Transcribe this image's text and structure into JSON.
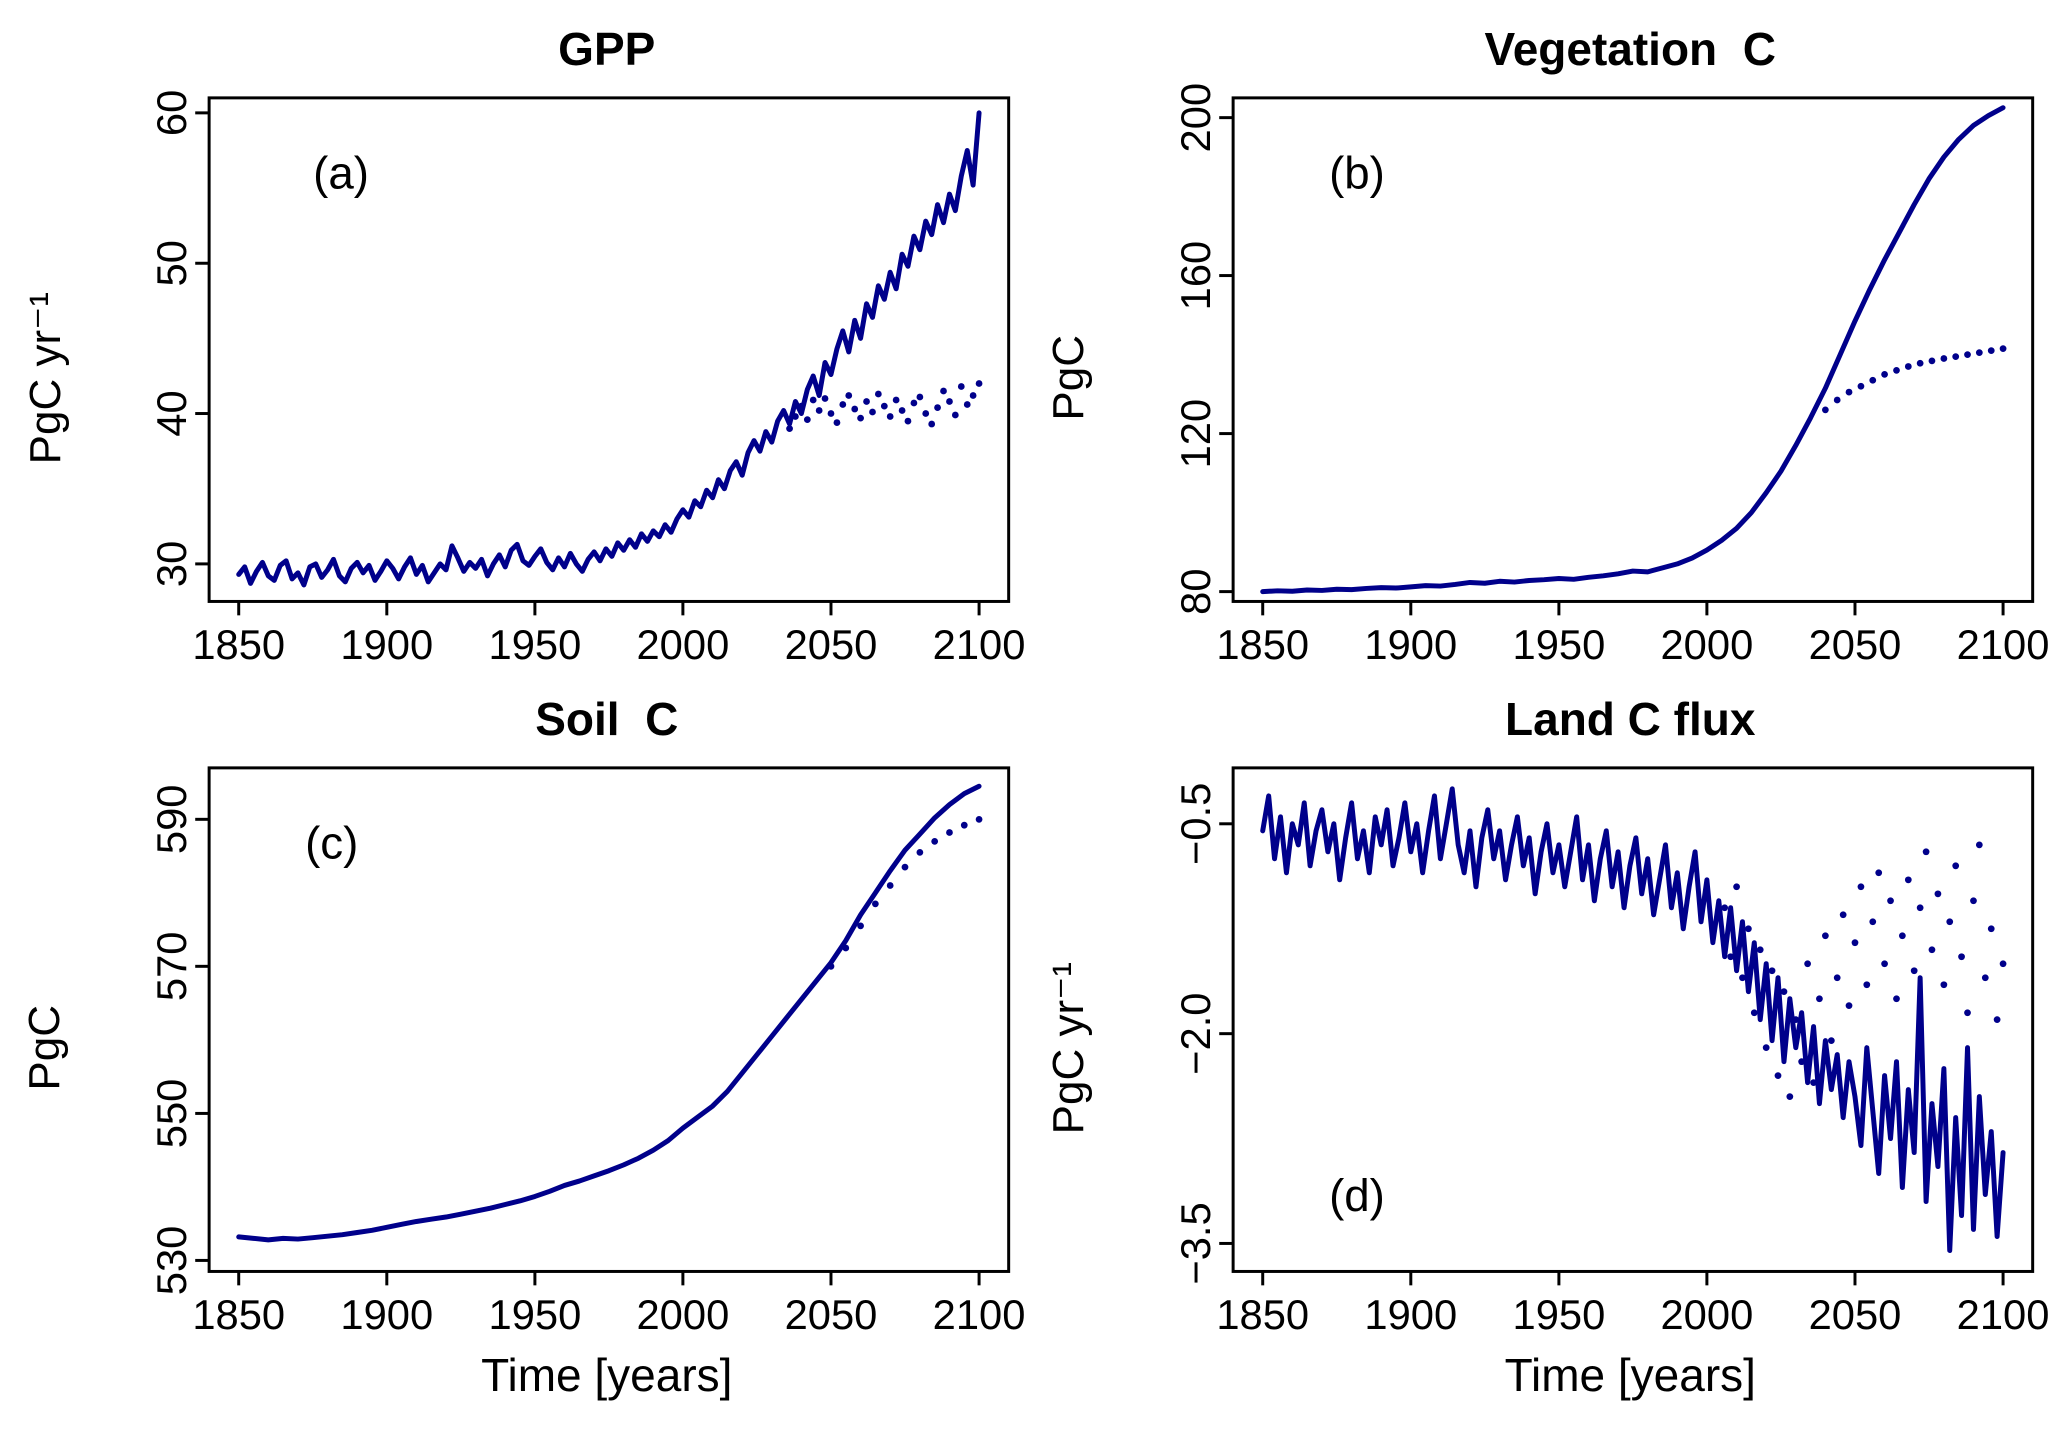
{
  "style": {
    "line_color": "#00008B",
    "axis_color": "#000000",
    "background": "#ffffff"
  },
  "chart_data": [
    {
      "letter": "(a)",
      "title": "GPP",
      "ylabel": "PgC yr⁻¹",
      "xlabel": "",
      "type": "line",
      "x_range": [
        1840,
        2110
      ],
      "y_range": [
        27.5,
        61
      ],
      "x_ticks": [
        1850,
        1900,
        1950,
        2000,
        2050,
        2100
      ],
      "x_tick_labels": [
        "1850",
        "1900",
        "1950",
        "2000",
        "2050",
        "2100"
      ],
      "y_ticks": [
        30,
        40,
        50,
        60
      ],
      "y_tick_labels": [
        "30",
        "40",
        "50",
        "60"
      ],
      "letter_pos": [
        0.13,
        0.18
      ],
      "series": [
        {
          "id": "solid",
          "name": "solid",
          "style": "line",
          "x_start": 1850,
          "x_step": 2,
          "values": [
            29.3,
            29.8,
            28.7,
            29.5,
            30.1,
            29.2,
            28.9,
            29.9,
            30.2,
            29.0,
            29.4,
            28.6,
            29.8,
            30.0,
            29.1,
            29.6,
            30.3,
            29.2,
            28.8,
            29.7,
            30.1,
            29.4,
            29.9,
            28.9,
            29.5,
            30.2,
            29.7,
            29.0,
            29.8,
            30.4,
            29.3,
            29.9,
            28.8,
            29.4,
            30.0,
            29.6,
            31.2,
            30.4,
            29.5,
            30.1,
            29.7,
            30.3,
            29.2,
            30.0,
            30.6,
            29.8,
            30.9,
            31.3,
            30.2,
            29.9,
            30.5,
            31.0,
            30.1,
            29.6,
            30.4,
            29.8,
            30.7,
            30.0,
            29.5,
            30.3,
            30.8,
            30.2,
            31.0,
            30.5,
            31.4,
            30.9,
            31.6,
            31.1,
            32.0,
            31.5,
            32.2,
            31.8,
            32.6,
            32.1,
            33.0,
            33.6,
            33.1,
            34.2,
            33.8,
            34.9,
            34.4,
            35.6,
            35.0,
            36.2,
            36.8,
            35.9,
            37.4,
            38.2,
            37.5,
            38.8,
            38.1,
            39.5,
            40.2,
            39.3,
            40.8,
            40.0,
            41.6,
            42.5,
            41.2,
            43.4,
            42.6,
            44.3,
            45.5,
            44.1,
            46.2,
            45.0,
            47.3,
            46.4,
            48.5,
            47.6,
            49.4,
            48.3,
            50.6,
            49.8,
            51.8,
            50.9,
            52.8,
            51.9,
            53.9,
            52.7,
            54.6,
            53.5,
            55.8,
            57.5,
            55.2,
            60.0
          ]
        },
        {
          "id": "dotted",
          "name": "dotted",
          "style": "dots",
          "x_start": 2036,
          "x_step": 2,
          "values": [
            39.0,
            39.8,
            40.5,
            39.6,
            40.9,
            40.2,
            41.0,
            40.0,
            39.4,
            40.6,
            41.2,
            40.3,
            39.7,
            40.8,
            40.1,
            41.3,
            40.5,
            39.8,
            40.9,
            40.2,
            39.5,
            40.7,
            41.1,
            40.0,
            39.3,
            40.4,
            41.5,
            40.8,
            39.9,
            41.8,
            40.6,
            41.2,
            42.0
          ]
        }
      ]
    },
    {
      "letter": "(b)",
      "title": "Vegetation  C",
      "ylabel": "PgC",
      "xlabel": "",
      "type": "line",
      "x_range": [
        1840,
        2110
      ],
      "y_range": [
        77.5,
        205
      ],
      "x_ticks": [
        1850,
        1900,
        1950,
        2000,
        2050,
        2100
      ],
      "x_tick_labels": [
        "1850",
        "1900",
        "1950",
        "2000",
        "2050",
        "2100"
      ],
      "y_ticks": [
        80,
        120,
        160,
        200
      ],
      "y_tick_labels": [
        "80",
        "120",
        "160",
        "200"
      ],
      "letter_pos": [
        0.12,
        0.18
      ],
      "series": [
        {
          "id": "solid",
          "name": "solid",
          "style": "line",
          "x_start": 1850,
          "x_step": 5,
          "values": [
            80.0,
            80.2,
            80.1,
            80.4,
            80.3,
            80.6,
            80.5,
            80.8,
            81.0,
            80.9,
            81.2,
            81.5,
            81.4,
            81.8,
            82.3,
            82.1,
            82.6,
            82.4,
            82.8,
            83.0,
            83.3,
            83.1,
            83.6,
            84.0,
            84.5,
            85.2,
            85.0,
            86.0,
            87.0,
            88.5,
            90.5,
            93.0,
            96.0,
            100.0,
            105.0,
            110.5,
            117.0,
            124.0,
            131.5,
            140.0,
            148.5,
            156.5,
            164.0,
            171.0,
            178.0,
            184.5,
            190.0,
            194.5,
            198.0,
            200.5,
            202.5
          ]
        },
        {
          "id": "dotted",
          "name": "dotted",
          "style": "dots",
          "x_start": 2040,
          "x_step": 4,
          "values": [
            126.0,
            128.5,
            130.5,
            132.0,
            133.5,
            135.0,
            136.0,
            137.0,
            137.8,
            138.4,
            139.0,
            139.5,
            140.0,
            140.5,
            141.0,
            141.5
          ]
        }
      ]
    },
    {
      "letter": "(c)",
      "title": "Soil  C",
      "ylabel": "PgC",
      "xlabel": "Time [years]",
      "type": "line",
      "x_range": [
        1840,
        2110
      ],
      "y_range": [
        528.5,
        597
      ],
      "x_ticks": [
        1850,
        1900,
        1950,
        2000,
        2050,
        2100
      ],
      "x_tick_labels": [
        "1850",
        "1900",
        "1950",
        "2000",
        "2050",
        "2100"
      ],
      "y_ticks": [
        530,
        550,
        570,
        590
      ],
      "y_tick_labels": [
        "530",
        "550",
        "570",
        "590"
      ],
      "letter_pos": [
        0.12,
        0.18
      ],
      "series": [
        {
          "id": "solid",
          "name": "solid",
          "style": "line",
          "x_start": 1850,
          "x_step": 5,
          "values": [
            533.2,
            533.0,
            532.8,
            533.0,
            532.9,
            533.1,
            533.3,
            533.5,
            533.8,
            534.1,
            534.5,
            534.9,
            535.3,
            535.6,
            535.9,
            536.3,
            536.7,
            537.1,
            537.6,
            538.1,
            538.7,
            539.4,
            540.2,
            540.8,
            541.5,
            542.2,
            543.0,
            543.9,
            545.0,
            546.3,
            548.0,
            549.5,
            551.0,
            553.0,
            555.5,
            558.0,
            560.5,
            563.0,
            565.5,
            568.0,
            570.5,
            573.5,
            577.0,
            580.0,
            583.0,
            585.8,
            588.0,
            590.2,
            592.0,
            593.5,
            594.5
          ]
        },
        {
          "id": "dotted",
          "name": "dotted",
          "style": "dots",
          "x_start": 2050,
          "x_step": 5,
          "values": [
            570.0,
            572.5,
            575.5,
            578.5,
            581.0,
            583.5,
            585.5,
            587.0,
            588.2,
            589.2,
            590.0
          ]
        }
      ]
    },
    {
      "letter": "(d)",
      "title": "Land C flux",
      "ylabel": "PgC yr⁻¹",
      "xlabel": "Time [years]",
      "type": "line",
      "x_range": [
        1840,
        2110
      ],
      "y_range": [
        -3.7,
        -0.1
      ],
      "x_ticks": [
        1850,
        1900,
        1950,
        2000,
        2050,
        2100
      ],
      "x_tick_labels": [
        "1850",
        "1900",
        "1950",
        "2000",
        "2050",
        "2100"
      ],
      "y_ticks": [
        -3.5,
        -2.0,
        -0.5
      ],
      "y_tick_labels": [
        "−3.5",
        "−2.0",
        "−0.5"
      ],
      "letter_pos": [
        0.12,
        0.88
      ],
      "series": [
        {
          "id": "solid",
          "name": "solid",
          "style": "line",
          "x_start": 1850,
          "x_step": 2,
          "values": [
            -0.55,
            -0.3,
            -0.75,
            -0.45,
            -0.85,
            -0.5,
            -0.65,
            -0.35,
            -0.8,
            -0.55,
            -0.4,
            -0.7,
            -0.5,
            -0.9,
            -0.6,
            -0.35,
            -0.75,
            -0.55,
            -0.85,
            -0.45,
            -0.65,
            -0.4,
            -0.8,
            -0.6,
            -0.35,
            -0.7,
            -0.5,
            -0.85,
            -0.55,
            -0.3,
            -0.75,
            -0.5,
            -0.25,
            -0.65,
            -0.85,
            -0.55,
            -0.95,
            -0.6,
            -0.4,
            -0.75,
            -0.55,
            -0.9,
            -0.65,
            -0.45,
            -0.8,
            -0.6,
            -1.0,
            -0.7,
            -0.5,
            -0.85,
            -0.65,
            -0.95,
            -0.7,
            -0.45,
            -0.9,
            -0.65,
            -1.05,
            -0.75,
            -0.55,
            -0.95,
            -0.7,
            -1.1,
            -0.8,
            -0.6,
            -1.0,
            -0.75,
            -1.15,
            -0.9,
            -0.65,
            -1.1,
            -0.85,
            -1.25,
            -0.95,
            -0.7,
            -1.2,
            -0.9,
            -1.35,
            -1.05,
            -1.45,
            -1.1,
            -1.55,
            -1.2,
            -1.7,
            -1.35,
            -1.9,
            -1.5,
            -2.05,
            -1.6,
            -2.2,
            -1.75,
            -2.1,
            -1.85,
            -2.35,
            -1.95,
            -2.5,
            -2.05,
            -2.4,
            -2.15,
            -2.6,
            -2.2,
            -2.45,
            -2.8,
            -2.1,
            -2.55,
            -3.0,
            -2.3,
            -2.75,
            -2.2,
            -3.1,
            -2.4,
            -2.85,
            -1.6,
            -3.2,
            -2.5,
            -2.95,
            -2.25,
            -3.55,
            -2.6,
            -3.3,
            -2.1,
            -3.4,
            -2.45,
            -3.15,
            -2.7,
            -3.45,
            -2.85
          ]
        },
        {
          "id": "dotted",
          "name": "dotted",
          "style": "dots",
          "x_start": 2006,
          "x_step": 2,
          "values": [
            -1.1,
            -1.45,
            -0.95,
            -1.6,
            -1.25,
            -1.85,
            -1.4,
            -2.1,
            -1.55,
            -2.3,
            -1.7,
            -2.45,
            -1.9,
            -2.2,
            -1.5,
            -2.35,
            -1.75,
            -1.3,
            -2.05,
            -1.6,
            -1.15,
            -1.8,
            -1.35,
            -0.95,
            -1.65,
            -1.2,
            -0.85,
            -1.5,
            -1.05,
            -1.75,
            -1.3,
            -0.9,
            -1.55,
            -1.1,
            -0.7,
            -1.4,
            -1.0,
            -1.65,
            -1.2,
            -0.8,
            -1.45,
            -1.85,
            -1.05,
            -0.65,
            -1.6,
            -1.25,
            -1.9,
            -1.5
          ]
        }
      ]
    }
  ]
}
